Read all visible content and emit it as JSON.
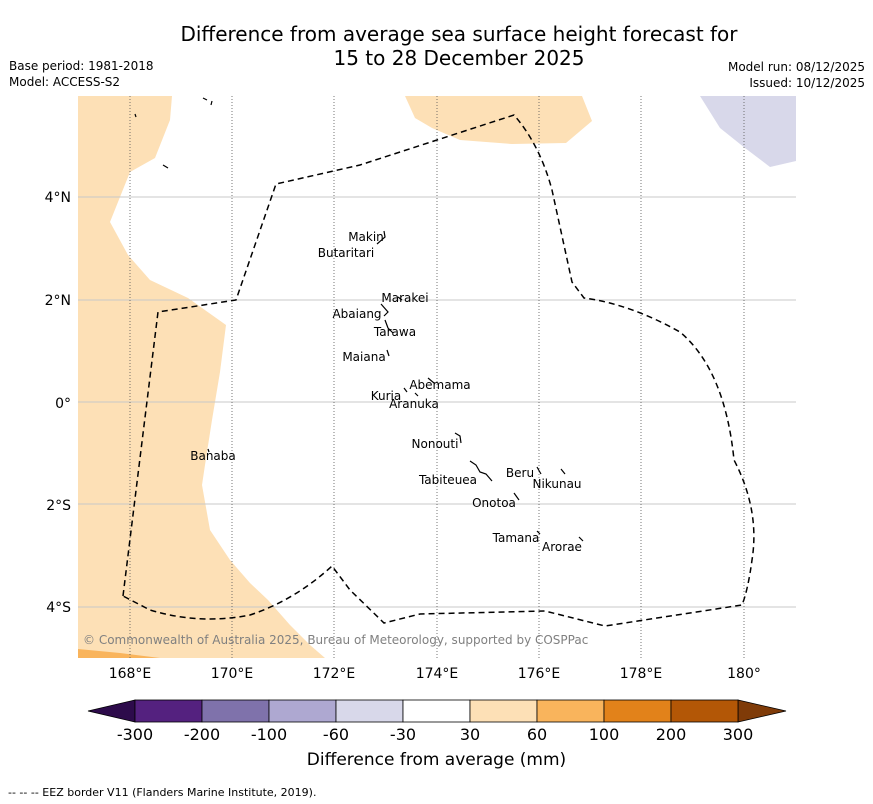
{
  "title_line1": "Difference from average sea surface height forecast for",
  "title_line2": "15 to 28 December 2025",
  "base_period": "Base period: 1981-2018",
  "model": "Model: ACCESS-S2",
  "model_run": "Model run: 08/12/2025",
  "issued": "Issued: 10/12/2025",
  "copyright": "© Commonwealth of Australia 2025, Bureau of Meteorology, supported by COSPPac",
  "footer": "--  --  -- EEZ border V11 (Flanders Marine Institute, 2019).",
  "colorbar": {
    "label": "Difference from average (mm)",
    "ticks": [
      "-300",
      "-200",
      "-100",
      "-60",
      "-30",
      "30",
      "60",
      "100",
      "200",
      "300"
    ],
    "colors": [
      "#54217f",
      "#7f72ab",
      "#aea8d1",
      "#d8d8ea",
      "#ffffff",
      "#fde0b6",
      "#f9b45c",
      "#e2821a",
      "#b35706"
    ],
    "under_color": "#2d0b4b",
    "over_color": "#7f3b08"
  },
  "axes": {
    "lon_labels": [
      "168°E",
      "170°E",
      "172°E",
      "174°E",
      "176°E",
      "178°E",
      "180°"
    ],
    "lat_labels": [
      "4°N",
      "2°N",
      "0°",
      "2°S",
      "4°S"
    ]
  },
  "islands": [
    {
      "name": "Makin"
    },
    {
      "name": "Butaritari"
    },
    {
      "name": "Marakei"
    },
    {
      "name": "Abaiang"
    },
    {
      "name": "Tarawa"
    },
    {
      "name": "Maiana"
    },
    {
      "name": "Abemama"
    },
    {
      "name": "Kuria"
    },
    {
      "name": "Aranuka"
    },
    {
      "name": "Nonouti"
    },
    {
      "name": "Banaba"
    },
    {
      "name": "Beru"
    },
    {
      "name": "Tabiteuea"
    },
    {
      "name": "Nikunau"
    },
    {
      "name": "Onotoa"
    },
    {
      "name": "Tamana"
    },
    {
      "name": "Arorae"
    }
  ]
}
